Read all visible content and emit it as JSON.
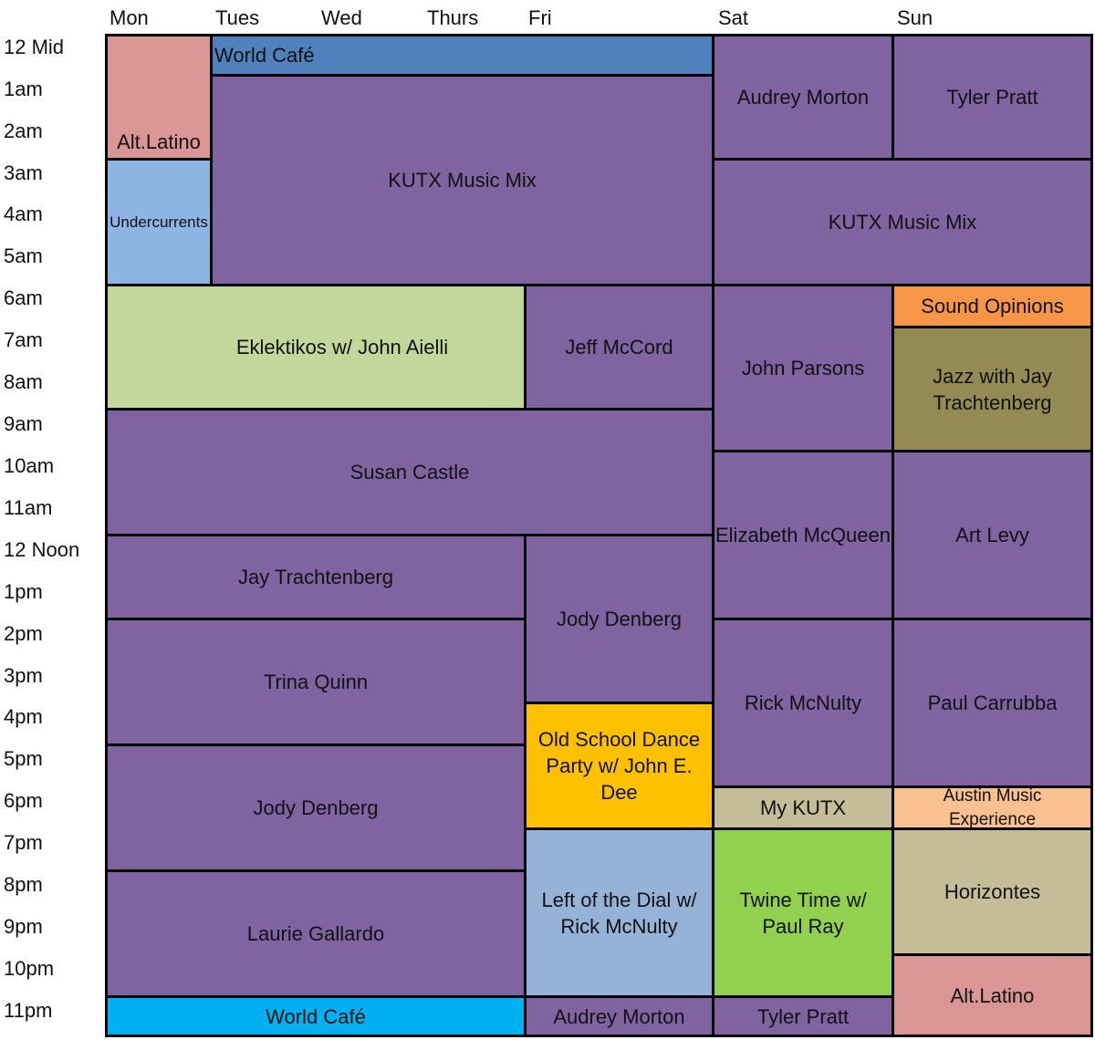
{
  "days": [
    "Mon",
    "Tues",
    "Wed",
    "Thurs",
    "Fri",
    "Sat",
    "Sun"
  ],
  "hours": [
    "12 Mid",
    "1am",
    "2am",
    "3am",
    "4am",
    "5am",
    "6am",
    "7am",
    "8am",
    "9am",
    "10am",
    "11am",
    "12 Noon",
    "1pm",
    "2pm",
    "3pm",
    "4pm",
    "5pm",
    "6pm",
    "7pm",
    "8pm",
    "9pm",
    "10pm",
    "11pm"
  ],
  "shows": {
    "alt_latino_mon": "Alt.Latino",
    "world_cafe_top": "World Café",
    "kutx_music_mix_weekday": "KUTX Music Mix",
    "undercurrents": "Undercurrents",
    "audrey_morton_sat": "Audrey Morton",
    "tyler_pratt_sun": "Tyler Pratt",
    "kutx_music_mix_weekend": "KUTX Music Mix",
    "eklektikos": "Eklektikos w/ John Aielli",
    "jeff_mccord": "Jeff McCord",
    "john_parsons": "John Parsons",
    "sound_opinions": "Sound Opinions",
    "jazz_jay": "Jazz with Jay Trachtenberg",
    "susan_castle": "Susan Castle",
    "elizabeth_mcqueen": "Elizabeth McQueen",
    "art_levy": "Art Levy",
    "jay_trachtenberg": "Jay Trachtenberg",
    "jody_denberg_fri": "Jody Denberg",
    "trina_quinn": "Trina Quinn",
    "rick_mcnulty_sat": "Rick McNulty",
    "paul_carrubba": "Paul Carrubba",
    "old_school_dance": "Old School Dance Party w/ John E. Dee",
    "jody_denberg_eve": "Jody Denberg",
    "my_kutx": "My KUTX",
    "austin_music_experience": "Austin Music Experience",
    "left_of_the_dial": "Left of the Dial w/ Rick McNulty",
    "twine_time": "Twine Time w/ Paul Ray",
    "horizontes": "Horizontes",
    "laurie_gallardo": "Laurie Gallardo",
    "alt_latino_sun": "Alt.Latino",
    "world_cafe_bottom": "World Café",
    "audrey_morton_fri": "Audrey Morton",
    "tyler_pratt_sat": "Tyler Pratt"
  },
  "colors": {
    "purple": "#8064a2",
    "pink": "#d99694",
    "blue": "#4f81bd",
    "light_blue": "#8eb4e3",
    "light_green": "#c3d69b",
    "orange": "#f79646",
    "olive": "#948a54",
    "gold": "#ffc000",
    "tan": "#c4bd97",
    "peach": "#fac090",
    "steel_blue": "#95b3d7",
    "green": "#92d050",
    "cyan": "#00b0f0"
  }
}
